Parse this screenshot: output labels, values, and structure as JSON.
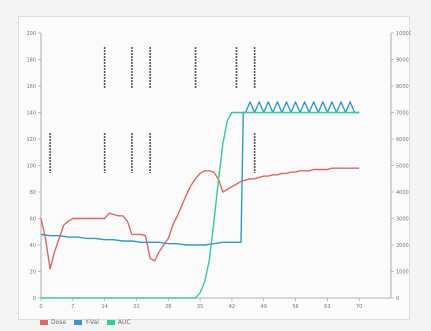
{
  "chart_data": {
    "type": "line",
    "title": "",
    "xlabel": "",
    "ylabel": "",
    "x_ticks": [
      0,
      7,
      14,
      21,
      28,
      35,
      42,
      49,
      56,
      63,
      70
    ],
    "xlim": [
      0,
      77
    ],
    "y_left_ticks": [
      0,
      20,
      40,
      60,
      80,
      100,
      120,
      140,
      160,
      180,
      200
    ],
    "ylim_left": [
      0,
      200
    ],
    "y_right_ticks": [
      0,
      1000,
      2000,
      3000,
      4000,
      5000,
      6000,
      7000,
      8000,
      9000,
      10000
    ],
    "ylim_right": [
      0,
      10000
    ],
    "series": [
      {
        "name": "Dose",
        "color": "#e06666",
        "axis": "left",
        "x": [
          0,
          1,
          2,
          3,
          4,
          5,
          6,
          7,
          8,
          9,
          10,
          11,
          12,
          13,
          14,
          15,
          16,
          17,
          18,
          19,
          20,
          21,
          22,
          23,
          24,
          25,
          26,
          27,
          28,
          29,
          30,
          31,
          32,
          33,
          34,
          35,
          36,
          37,
          38,
          39,
          40,
          41,
          42,
          43,
          44,
          45,
          46,
          47,
          48,
          49,
          50,
          51,
          52,
          53,
          54,
          55,
          56,
          57,
          58,
          59,
          60,
          61,
          62,
          63,
          64,
          65,
          66,
          67,
          68,
          69,
          70
        ],
        "values": [
          60,
          45,
          22,
          35,
          45,
          55,
          58,
          60,
          60,
          60,
          60,
          60,
          60,
          60,
          60,
          64,
          63,
          62,
          62,
          58,
          48,
          48,
          48,
          47,
          30,
          28,
          35,
          40,
          45,
          55,
          62,
          70,
          78,
          85,
          90,
          94,
          96,
          96,
          95,
          90,
          80,
          82,
          84,
          86,
          88,
          89,
          90,
          90,
          91,
          92,
          92,
          93,
          93,
          94,
          94,
          95,
          95,
          96,
          96,
          96,
          97,
          97,
          97,
          97,
          98,
          98,
          98,
          98,
          98,
          98,
          98
        ]
      },
      {
        "name": "Y-Val",
        "color": "#3399cc",
        "axis": "left",
        "x": [
          0,
          2,
          4,
          6,
          8,
          10,
          12,
          14,
          16,
          18,
          20,
          22,
          24,
          26,
          28,
          30,
          32,
          34,
          36,
          38,
          40,
          42,
          43,
          44,
          44.5,
          45,
          46,
          47,
          48,
          49,
          50,
          51,
          52,
          53,
          54,
          55,
          56,
          57,
          58,
          59,
          60,
          61,
          62,
          63,
          64,
          65,
          66,
          67,
          68,
          69,
          70
        ],
        "values": [
          48,
          47,
          47,
          46,
          46,
          45,
          45,
          44,
          44,
          43,
          43,
          42,
          42,
          42,
          41,
          41,
          40,
          40,
          40,
          41,
          42,
          42,
          42,
          42,
          140,
          140,
          148,
          140,
          148,
          140,
          148,
          140,
          148,
          140,
          148,
          140,
          148,
          140,
          148,
          140,
          148,
          140,
          148,
          140,
          148,
          140,
          148,
          140,
          148,
          140,
          140
        ]
      },
      {
        "name": "AUC",
        "color": "#33cc99",
        "axis": "right",
        "x": [
          0,
          10,
          20,
          30,
          34,
          35,
          36,
          37,
          38,
          39,
          40,
          41,
          42,
          50,
          60,
          70
        ],
        "values": [
          0,
          0,
          0,
          0,
          0,
          200,
          600,
          1400,
          2800,
          4400,
          5800,
          6700,
          7000,
          7000,
          7000,
          7000
        ]
      }
    ],
    "annotations": [
      {
        "x": 2,
        "label": "",
        "placement": "lower"
      },
      {
        "x": 14,
        "label": "",
        "placement": "upper"
      },
      {
        "x": 14,
        "label": "",
        "placement": "lower"
      },
      {
        "x": 20,
        "label": "",
        "placement": "upper"
      },
      {
        "x": 20,
        "label": "",
        "placement": "lower"
      },
      {
        "x": 24,
        "label": "",
        "placement": "upper"
      },
      {
        "x": 24,
        "label": "",
        "placement": "lower"
      },
      {
        "x": 34,
        "label": "",
        "placement": "upper"
      },
      {
        "x": 43,
        "label": "",
        "placement": "upper"
      },
      {
        "x": 47,
        "label": "",
        "placement": "upper"
      },
      {
        "x": 47,
        "label": "",
        "placement": "lower"
      }
    ],
    "legend": "bottom-left",
    "grid": false
  },
  "legend_items": [
    {
      "label": "Dose",
      "color": "#e06666"
    },
    {
      "label": "Y-Val",
      "color": "#3399cc"
    },
    {
      "label": "AUC",
      "color": "#33cc99"
    }
  ]
}
